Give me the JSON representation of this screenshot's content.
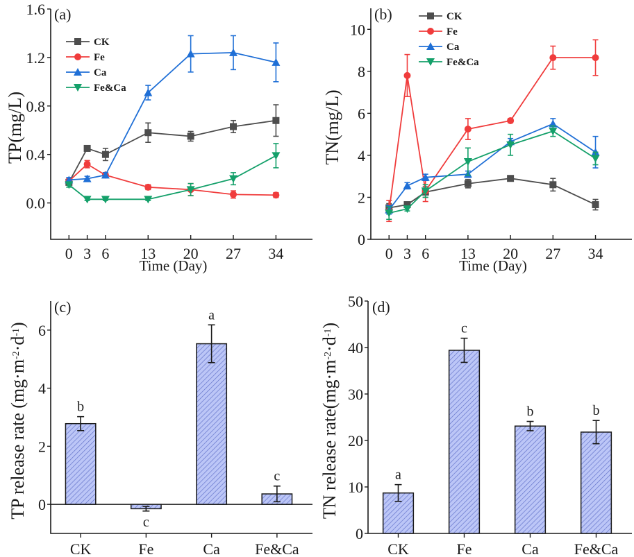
{
  "chart_data": [
    {
      "id": "a",
      "type": "line",
      "panel_label": "(a)",
      "title": "",
      "xlabel": "Time (Day)",
      "ylabel": "TP(mg/L)",
      "x": [
        0,
        3,
        6,
        13,
        20,
        27,
        34
      ],
      "xticks": [
        "0",
        "3",
        "6",
        "13",
        "20",
        "27",
        "34"
      ],
      "xlim": [
        -3,
        40
      ],
      "ylim": [
        -0.3,
        1.6
      ],
      "yticks": [
        0.0,
        0.4,
        0.8,
        1.2,
        1.6
      ],
      "ytick_labels": [
        "0.0",
        "0.4",
        "0.8",
        "1.2",
        "1.6"
      ],
      "grid": false,
      "legend_position": "top-left",
      "series": [
        {
          "name": "CK",
          "color": "#4d4d4d",
          "marker": "square",
          "values": [
            0.17,
            0.45,
            0.4,
            0.58,
            0.55,
            0.63,
            0.68
          ],
          "errors": [
            0.02,
            0.02,
            0.05,
            0.08,
            0.04,
            0.05,
            0.13
          ]
        },
        {
          "name": "Fe",
          "color": "#f03c3c",
          "marker": "circle",
          "values": [
            0.18,
            0.32,
            0.23,
            0.13,
            0.11,
            0.07,
            0.065
          ],
          "errors": [
            0.02,
            0.03,
            0.02,
            0.02,
            0.05,
            0.03,
            0.02
          ]
        },
        {
          "name": "Ca",
          "color": "#1f6fd6",
          "marker": "triangle-up",
          "values": [
            0.19,
            0.2,
            0.23,
            0.91,
            1.23,
            1.24,
            1.16
          ],
          "errors": [
            0.02,
            0.02,
            0.02,
            0.06,
            0.15,
            0.14,
            0.16
          ]
        },
        {
          "name": "Fe&Ca",
          "color": "#14a06a",
          "marker": "triangle-down",
          "values": [
            0.15,
            0.03,
            0.03,
            0.03,
            0.11,
            0.2,
            0.39
          ],
          "errors": [
            0.02,
            0.01,
            0.01,
            0.01,
            0.05,
            0.05,
            0.1
          ]
        }
      ]
    },
    {
      "id": "b",
      "type": "line",
      "panel_label": "(b)",
      "title": "",
      "xlabel": "Time (Day)",
      "ylabel": "TN(mg/L)",
      "x": [
        0,
        3,
        6,
        13,
        20,
        27,
        34
      ],
      "xticks": [
        "0",
        "3",
        "6",
        "13",
        "20",
        "27",
        "34"
      ],
      "xlim": [
        -3,
        40
      ],
      "ylim": [
        0,
        11
      ],
      "yticks": [
        0,
        2,
        4,
        6,
        8,
        10
      ],
      "ytick_labels": [
        "0",
        "2",
        "4",
        "6",
        "8",
        "10"
      ],
      "grid": false,
      "legend_position": "top-center",
      "series": [
        {
          "name": "CK",
          "color": "#4d4d4d",
          "marker": "square",
          "values": [
            1.5,
            1.65,
            2.25,
            2.65,
            2.9,
            2.6,
            1.65
          ],
          "errors": [
            0.2,
            0.1,
            0.25,
            0.2,
            0.1,
            0.3,
            0.25
          ]
        },
        {
          "name": "Fe",
          "color": "#f03c3c",
          "marker": "circle",
          "values": [
            1.35,
            7.8,
            2.3,
            5.25,
            5.65,
            8.65,
            8.65
          ],
          "errors": [
            0.5,
            1.0,
            0.5,
            0.5,
            0.1,
            0.55,
            0.85
          ]
        },
        {
          "name": "Ca",
          "color": "#1f6fd6",
          "marker": "triangle-up",
          "values": [
            1.4,
            2.55,
            2.95,
            3.1,
            4.65,
            5.5,
            4.15
          ],
          "errors": [
            0.2,
            0.15,
            0.15,
            0.15,
            0.15,
            0.25,
            0.75
          ]
        },
        {
          "name": "Fe&Ca",
          "color": "#14a06a",
          "marker": "triangle-down",
          "values": [
            1.25,
            1.45,
            2.3,
            3.7,
            4.5,
            5.15,
            3.85
          ],
          "errors": [
            0.3,
            0.1,
            0.3,
            0.65,
            0.5,
            0.25,
            0.3
          ]
        }
      ]
    },
    {
      "id": "c",
      "type": "bar",
      "panel_label": "(c)",
      "title": "",
      "xlabel": "",
      "ylabel": "TP release rate (mg·m⁻²·d⁻¹)",
      "categories": [
        "CK",
        "Fe",
        "Ca",
        "Fe&Ca"
      ],
      "values": [
        2.78,
        -0.15,
        5.53,
        0.36
      ],
      "errors": [
        0.24,
        0.08,
        0.65,
        0.27
      ],
      "significance": [
        "b",
        "c",
        "a",
        "c"
      ],
      "ylim": [
        -1,
        7
      ],
      "yticks": [
        0,
        2,
        4,
        6
      ],
      "ytick_labels": [
        "0",
        "2",
        "4",
        "6"
      ],
      "zero_line": true,
      "bar_fill": "#bcc6f7",
      "hatch_color": "#6070c8",
      "grid": false
    },
    {
      "id": "d",
      "type": "bar",
      "panel_label": "(d)",
      "title": "",
      "xlabel": "",
      "ylabel": "TN release rate(mg·m⁻²·d⁻¹)",
      "categories": [
        "CK",
        "Fe",
        "Ca",
        "Fe&Ca"
      ],
      "values": [
        8.7,
        39.4,
        23.1,
        21.8
      ],
      "errors": [
        1.8,
        2.6,
        1.0,
        2.5
      ],
      "significance": [
        "a",
        "c",
        "b",
        "b"
      ],
      "ylim": [
        0,
        50
      ],
      "yticks": [
        0,
        10,
        20,
        30,
        40,
        50
      ],
      "ytick_labels": [
        "0",
        "10",
        "20",
        "30",
        "40",
        "50"
      ],
      "zero_line": false,
      "bar_fill": "#bcc6f7",
      "hatch_color": "#6070c8",
      "grid": false
    }
  ]
}
